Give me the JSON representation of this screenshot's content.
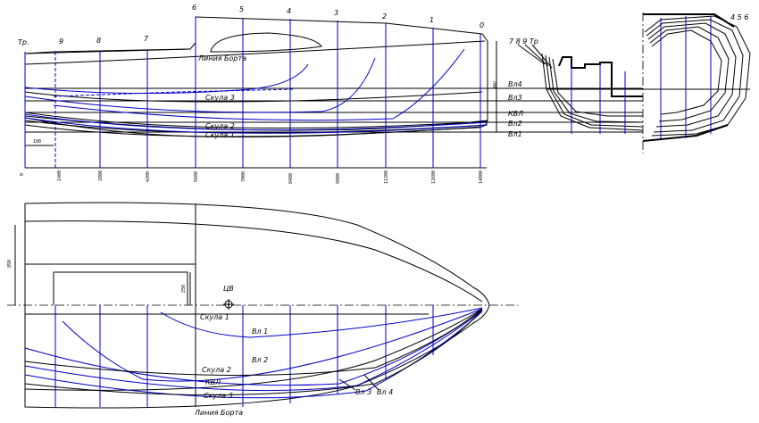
{
  "profile": {
    "frame_labels": [
      "Тр.",
      "9",
      "8",
      "7",
      "6",
      "5",
      "4",
      "3",
      "2",
      "1",
      "0"
    ],
    "line_labels": {
      "deck_line": "Линия Борта",
      "chine3": "Скула 3",
      "chine2": "Скула 2",
      "chine1": "Скула 1"
    },
    "waterline_labels": [
      "Вл4",
      "Вл3",
      "КВЛ",
      "Вл2",
      "Вл1"
    ],
    "dim_100": "100",
    "dim_height": "700",
    "frame_marks": [
      "0",
      "1400",
      "2800",
      "4200",
      "5600",
      "7000",
      "8400",
      "9800",
      "11200",
      "12600",
      "14000"
    ]
  },
  "body_plan": {
    "stern_labels": "7 8 9 Тр",
    "bow_labels": "4 5 6"
  },
  "plan": {
    "cb_label": "ЦВ",
    "dim_beam": "850",
    "dim_small": "250",
    "line_labels": {
      "chine1": "Скула 1",
      "wl1": "Вл 1",
      "wl2": "Вл 2",
      "chine2": "Скула 2",
      "dwl": "КВЛ",
      "chine3": "Скула 3",
      "deck_line": "Линия Борта",
      "wl3": "Вл 3",
      "wl4": "Вл 4"
    }
  }
}
